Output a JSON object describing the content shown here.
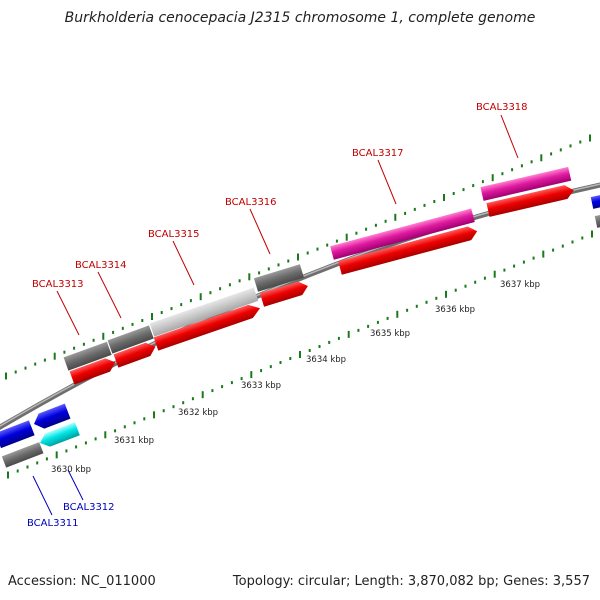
{
  "header": {
    "title": "Burkholderia cenocepacia J2315 chromosome 1, complete genome"
  },
  "footer": {
    "accession": "Accession: NC_011000",
    "summary": "Topology: circular; Length: 3,870,082 bp; Genes: 3,557"
  },
  "colors": {
    "backbone": "#8c8c8c",
    "tick": "#1a7a1a",
    "forward_label": "#c00000",
    "reverse_label": "#0000bb"
  },
  "scale_labels": [
    "3630 kbp",
    "3631 kbp",
    "3632 kbp",
    "3633 kbp",
    "3634 kbp",
    "3635 kbp",
    "3636 kbp",
    "3637 kbp"
  ],
  "genes": [
    {
      "label": "BCAL3311",
      "strand": "reverse",
      "color": "#0000dd"
    },
    {
      "label": "BCAL3312",
      "strand": "reverse",
      "color": "#00e5e5"
    },
    {
      "label": "BCAL3313",
      "strand": "forward",
      "color": "#ee0000"
    },
    {
      "label": "BCAL3314",
      "strand": "forward",
      "color": "#ee0000"
    },
    {
      "label": "BCAL3315",
      "strand": "forward",
      "color": "#ee0000"
    },
    {
      "label": "BCAL3316",
      "strand": "forward",
      "color": "#ee0000"
    },
    {
      "label": "BCAL3317",
      "strand": "forward",
      "color": "#e01aa0"
    },
    {
      "label": "BCAL3318",
      "strand": "forward",
      "color": "#e01aa0"
    }
  ]
}
